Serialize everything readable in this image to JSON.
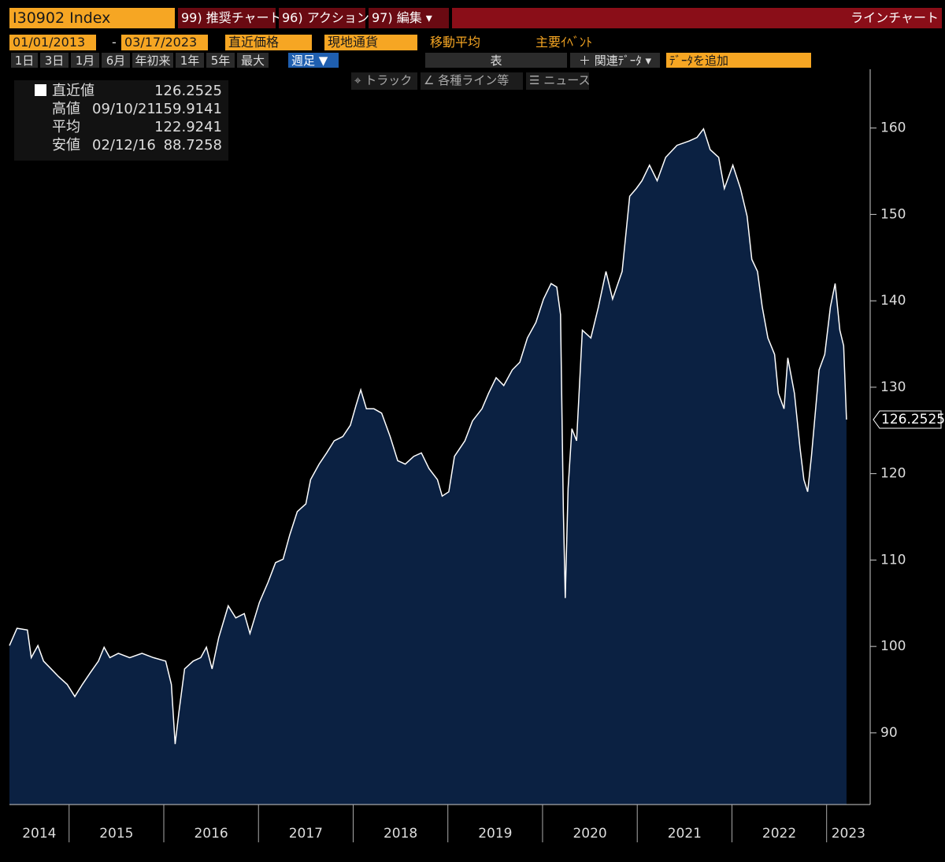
{
  "toolbar": {
    "ticker": "I30902 Index",
    "buttons": [
      "99) 推奨チャート",
      "96) アクション ▾",
      "97) 編集 ▾"
    ],
    "chart_type": "ラインチャート",
    "start_date": "01/01/2013",
    "date_sep": "-",
    "end_date": "03/17/2023",
    "price_field": "直近価格",
    "currency": "現地通貨",
    "moving_average": "移動平均",
    "events": "主要ｲﾍﾞﾝﾄ",
    "periods": [
      "1日",
      "3日",
      "1月",
      "6月",
      "年初来",
      "1年",
      "5年",
      "最大"
    ],
    "frequency": "週足 ▼",
    "table": "表",
    "related": "＋ 関連ﾃﾞｰﾀ ▾",
    "add_data": "ﾃﾞｰﾀを追加",
    "tools": [
      "⌖ トラック",
      "∠ 各種ライン等",
      "☰ ニュース"
    ]
  },
  "chart_data": {
    "type": "area",
    "stats": [
      {
        "label": "直近値",
        "date": "",
        "value": "126.2525"
      },
      {
        "label": "高値",
        "date": "09/10/21",
        "value": "159.9141"
      },
      {
        "label": "平均",
        "date": "",
        "value": "122.9241"
      },
      {
        "label": "安値",
        "date": "02/12/16",
        "value": "88.7258"
      }
    ],
    "x": [
      2014.37,
      2014.45,
      2014.56,
      2014.6,
      2014.67,
      2014.73,
      2014.81,
      2014.89,
      2014.98,
      2015.06,
      2015.14,
      2015.22,
      2015.31,
      2015.37,
      2015.43,
      2015.52,
      2015.64,
      2015.77,
      2015.89,
      2016.02,
      2016.08,
      2016.12,
      2016.16,
      2016.22,
      2016.31,
      2016.39,
      2016.45,
      2016.51,
      2016.58,
      2016.68,
      2016.76,
      2016.85,
      2016.91,
      2017.01,
      2017.1,
      2017.18,
      2017.26,
      2017.33,
      2017.41,
      2017.5,
      2017.55,
      2017.64,
      2017.72,
      2017.8,
      2017.89,
      2017.97,
      2018.03,
      2018.08,
      2018.14,
      2018.22,
      2018.3,
      2018.39,
      2018.47,
      2018.55,
      2018.64,
      2018.72,
      2018.8,
      2018.89,
      2018.94,
      2019.01,
      2019.07,
      2019.18,
      2019.26,
      2019.36,
      2019.43,
      2019.51,
      2019.59,
      2019.68,
      2019.76,
      2019.84,
      2019.93,
      2020.01,
      2020.09,
      2020.15,
      2020.19,
      2020.22,
      2020.24,
      2020.27,
      2020.31,
      2020.36,
      2020.42,
      2020.51,
      2020.59,
      2020.67,
      2020.74,
      2020.84,
      2020.92,
      2020.99,
      2021.05,
      2021.13,
      2021.21,
      2021.3,
      2021.42,
      2021.55,
      2021.63,
      2021.7,
      2021.77,
      2021.86,
      2021.92,
      2022.01,
      2022.09,
      2022.16,
      2022.21,
      2022.27,
      2022.32,
      2022.38,
      2022.45,
      2022.49,
      2022.55,
      2022.59,
      2022.66,
      2022.72,
      2022.76,
      2022.8,
      2022.84,
      2022.92,
      2022.98,
      2023.04,
      2023.09,
      2023.14,
      2023.18,
      2023.21
    ],
    "values": [
      100.1,
      102.1,
      101.9,
      98.7,
      100.1,
      98.3,
      97.4,
      96.5,
      95.6,
      94.2,
      95.6,
      96.9,
      98.3,
      99.9,
      98.7,
      99.2,
      98.7,
      99.2,
      98.7,
      98.3,
      95.6,
      88.7,
      92.4,
      97.4,
      98.3,
      98.7,
      99.9,
      97.4,
      101.0,
      104.7,
      103.3,
      103.8,
      101.5,
      105.1,
      107.4,
      109.7,
      110.1,
      112.9,
      115.6,
      116.5,
      119.3,
      121.1,
      122.4,
      123.8,
      124.3,
      125.6,
      127.9,
      129.7,
      127.5,
      127.5,
      127.0,
      124.3,
      121.5,
      121.1,
      122.0,
      122.4,
      120.6,
      119.3,
      117.4,
      117.9,
      122.0,
      123.8,
      126.1,
      127.5,
      129.3,
      131.1,
      130.2,
      132.0,
      132.9,
      135.7,
      137.5,
      140.2,
      142.0,
      141.6,
      138.4,
      115.6,
      105.6,
      118.3,
      125.2,
      123.8,
      136.6,
      135.7,
      139.3,
      143.4,
      140.2,
      143.4,
      152.1,
      153.0,
      153.9,
      155.7,
      153.9,
      156.6,
      158.0,
      158.5,
      158.9,
      159.9,
      157.5,
      156.6,
      153.0,
      155.7,
      153.0,
      149.8,
      144.8,
      143.4,
      139.3,
      135.7,
      133.8,
      129.3,
      127.5,
      133.4,
      129.3,
      122.9,
      119.3,
      117.9,
      122.0,
      132.0,
      133.8,
      139.3,
      142.0,
      136.6,
      134.8,
      126.2525
    ],
    "line_color": "#ffffff",
    "fill_color": "#0b2142",
    "xlim": [
      2014.37,
      2023.46
    ],
    "xticks": [
      2014,
      2015,
      2016,
      2017,
      2018,
      2019,
      2020,
      2021,
      2022,
      2023
    ],
    "ylim": [
      81.7,
      166.8
    ],
    "yticks": [
      90,
      100,
      110,
      120,
      130,
      140,
      150,
      160
    ]
  }
}
